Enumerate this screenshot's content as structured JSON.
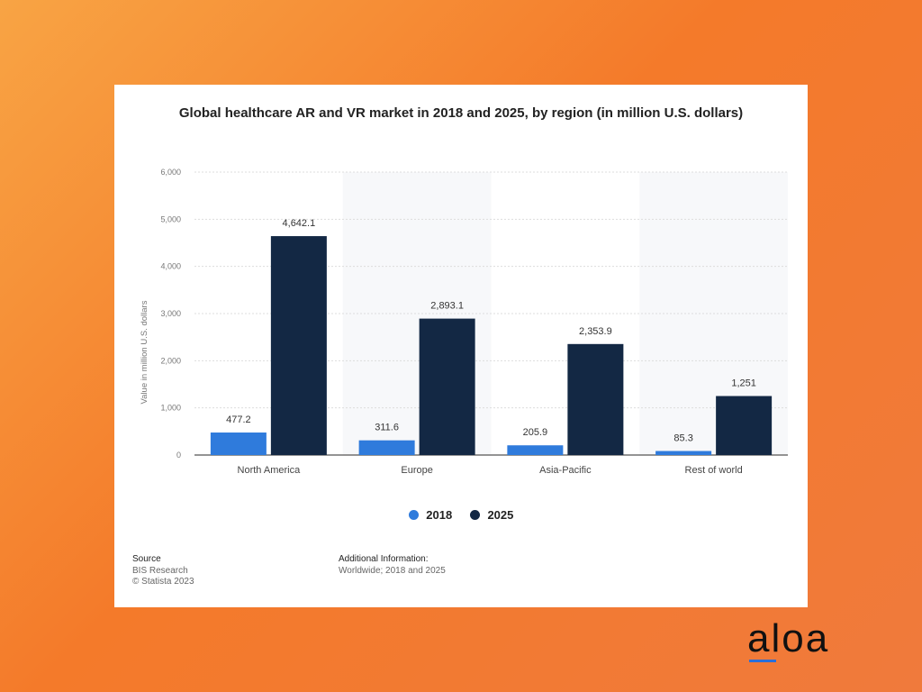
{
  "brand": {
    "logo_text": "aloa",
    "accent_color": "#2a6fd8"
  },
  "source": {
    "heading": "Source",
    "lines": [
      "BIS Research",
      "© Statista 2023"
    ]
  },
  "additional_info": {
    "heading": "Additional Information:",
    "text": "Worldwide; 2018 and 2025"
  },
  "chart_data": {
    "type": "bar",
    "title": "Global healthcare AR and VR market in 2018 and 2025, by region (in million U.S. dollars)",
    "xlabel": "",
    "ylabel": "Value in million U.S. dollars",
    "ylim": [
      0,
      6000
    ],
    "yticks": [
      0,
      1000,
      2000,
      3000,
      4000,
      5000,
      6000
    ],
    "ytick_labels": [
      "0",
      "1,000",
      "2,000",
      "3,000",
      "4,000",
      "5,000",
      "6,000"
    ],
    "grid": true,
    "legend_position": "bottom",
    "categories": [
      "North America",
      "Europe",
      "Asia-Pacific",
      "Rest of world"
    ],
    "series": [
      {
        "name": "2018",
        "color": "#2f7bdc",
        "values": [
          477.2,
          311.6,
          205.9,
          85.3
        ],
        "labels": [
          "477.2",
          "311.6",
          "205.9",
          "85.3"
        ]
      },
      {
        "name": "2025",
        "color": "#132844",
        "values": [
          4642.1,
          2893.1,
          2353.9,
          1251
        ],
        "labels": [
          "4,642.1",
          "2,893.1",
          "2,353.9",
          "1,251"
        ]
      }
    ]
  }
}
